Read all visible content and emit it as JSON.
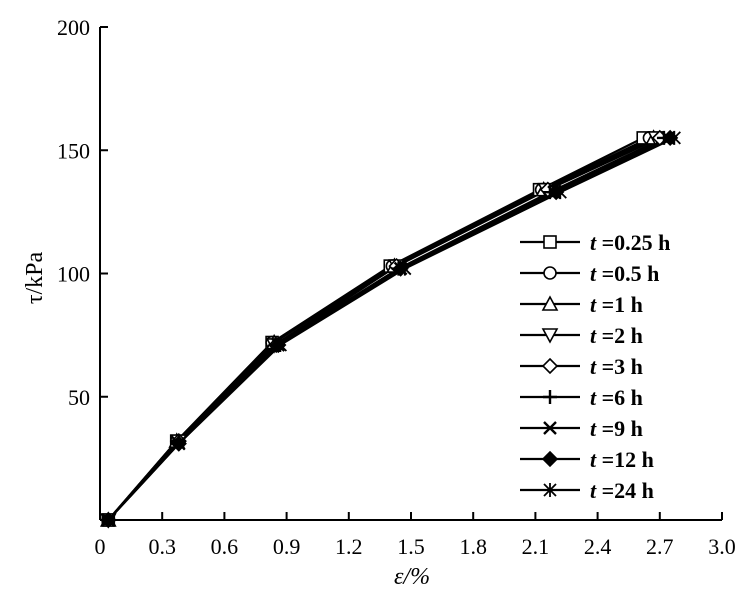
{
  "chart_data": {
    "type": "line",
    "title": "",
    "xlabel": "ε/%",
    "ylabel": "τ/kPa",
    "xlim": [
      0,
      3.0
    ],
    "ylim": [
      0,
      200
    ],
    "xticks": [
      0,
      0.3,
      0.6,
      0.9,
      1.2,
      1.5,
      1.8,
      2.1,
      2.4,
      2.7,
      3.0
    ],
    "xtick_labels": [
      "0",
      "0.3",
      "0.6",
      "0.9",
      "1.2",
      "1.5",
      "1.8",
      "2.1",
      "2.4",
      "2.7",
      "3.0"
    ],
    "yticks": [
      50,
      100,
      150,
      200
    ],
    "ytick_labels": [
      "50",
      "100",
      "150",
      "200"
    ],
    "grid": false,
    "legend_position": "right",
    "series": [
      {
        "name": "t =0.25 h",
        "label_var": "t",
        "label_rest": " =0.25 h",
        "marker": "square",
        "x": [
          0.04,
          0.37,
          0.83,
          1.4,
          2.12,
          2.62
        ],
        "y": [
          0,
          32,
          72,
          103,
          134,
          155
        ]
      },
      {
        "name": "t =0.5 h",
        "label_var": "t",
        "label_rest": " =0.5 h",
        "marker": "circle",
        "x": [
          0.04,
          0.37,
          0.83,
          1.41,
          2.13,
          2.65
        ],
        "y": [
          0,
          32,
          72,
          103,
          134,
          155
        ]
      },
      {
        "name": "t =1 h",
        "label_var": "t",
        "label_rest": " =1 h",
        "marker": "triangle-up",
        "x": [
          0.04,
          0.37,
          0.84,
          1.42,
          2.14,
          2.67
        ],
        "y": [
          0,
          32,
          72,
          103,
          134,
          155
        ]
      },
      {
        "name": "t =2 h",
        "label_var": "t",
        "label_rest": " =2 h",
        "marker": "triangle-down",
        "x": [
          0.04,
          0.38,
          0.84,
          1.43,
          2.15,
          2.68
        ],
        "y": [
          0,
          32,
          71,
          103,
          134,
          155
        ]
      },
      {
        "name": "t =3 h",
        "label_var": "t",
        "label_rest": " =3 h",
        "marker": "diamond",
        "x": [
          0.04,
          0.38,
          0.85,
          1.43,
          2.16,
          2.7
        ],
        "y": [
          0,
          32,
          71,
          103,
          134,
          155
        ]
      },
      {
        "name": "t =6 h",
        "label_var": "t",
        "label_rest": " =6 h",
        "marker": "plus",
        "x": [
          0.04,
          0.38,
          0.85,
          1.44,
          2.17,
          2.72
        ],
        "y": [
          0,
          32,
          71,
          102,
          133,
          155
        ]
      },
      {
        "name": "t =9 h",
        "label_var": "t",
        "label_rest": " =9 h",
        "marker": "x",
        "x": [
          0.04,
          0.38,
          0.86,
          1.45,
          2.19,
          2.74
        ],
        "y": [
          0,
          31,
          71,
          102,
          133,
          155
        ]
      },
      {
        "name": "t =12 h",
        "label_var": "t",
        "label_rest": " =12 h",
        "marker": "diamond-filled",
        "x": [
          0.04,
          0.38,
          0.86,
          1.45,
          2.2,
          2.75
        ],
        "y": [
          0,
          31,
          71,
          102,
          133,
          155
        ]
      },
      {
        "name": "t =24 h",
        "label_var": "t",
        "label_rest": " =24 h",
        "marker": "asterisk",
        "x": [
          0.04,
          0.38,
          0.87,
          1.47,
          2.22,
          2.77
        ],
        "y": [
          0,
          31,
          71,
          102,
          133,
          155
        ]
      }
    ]
  }
}
